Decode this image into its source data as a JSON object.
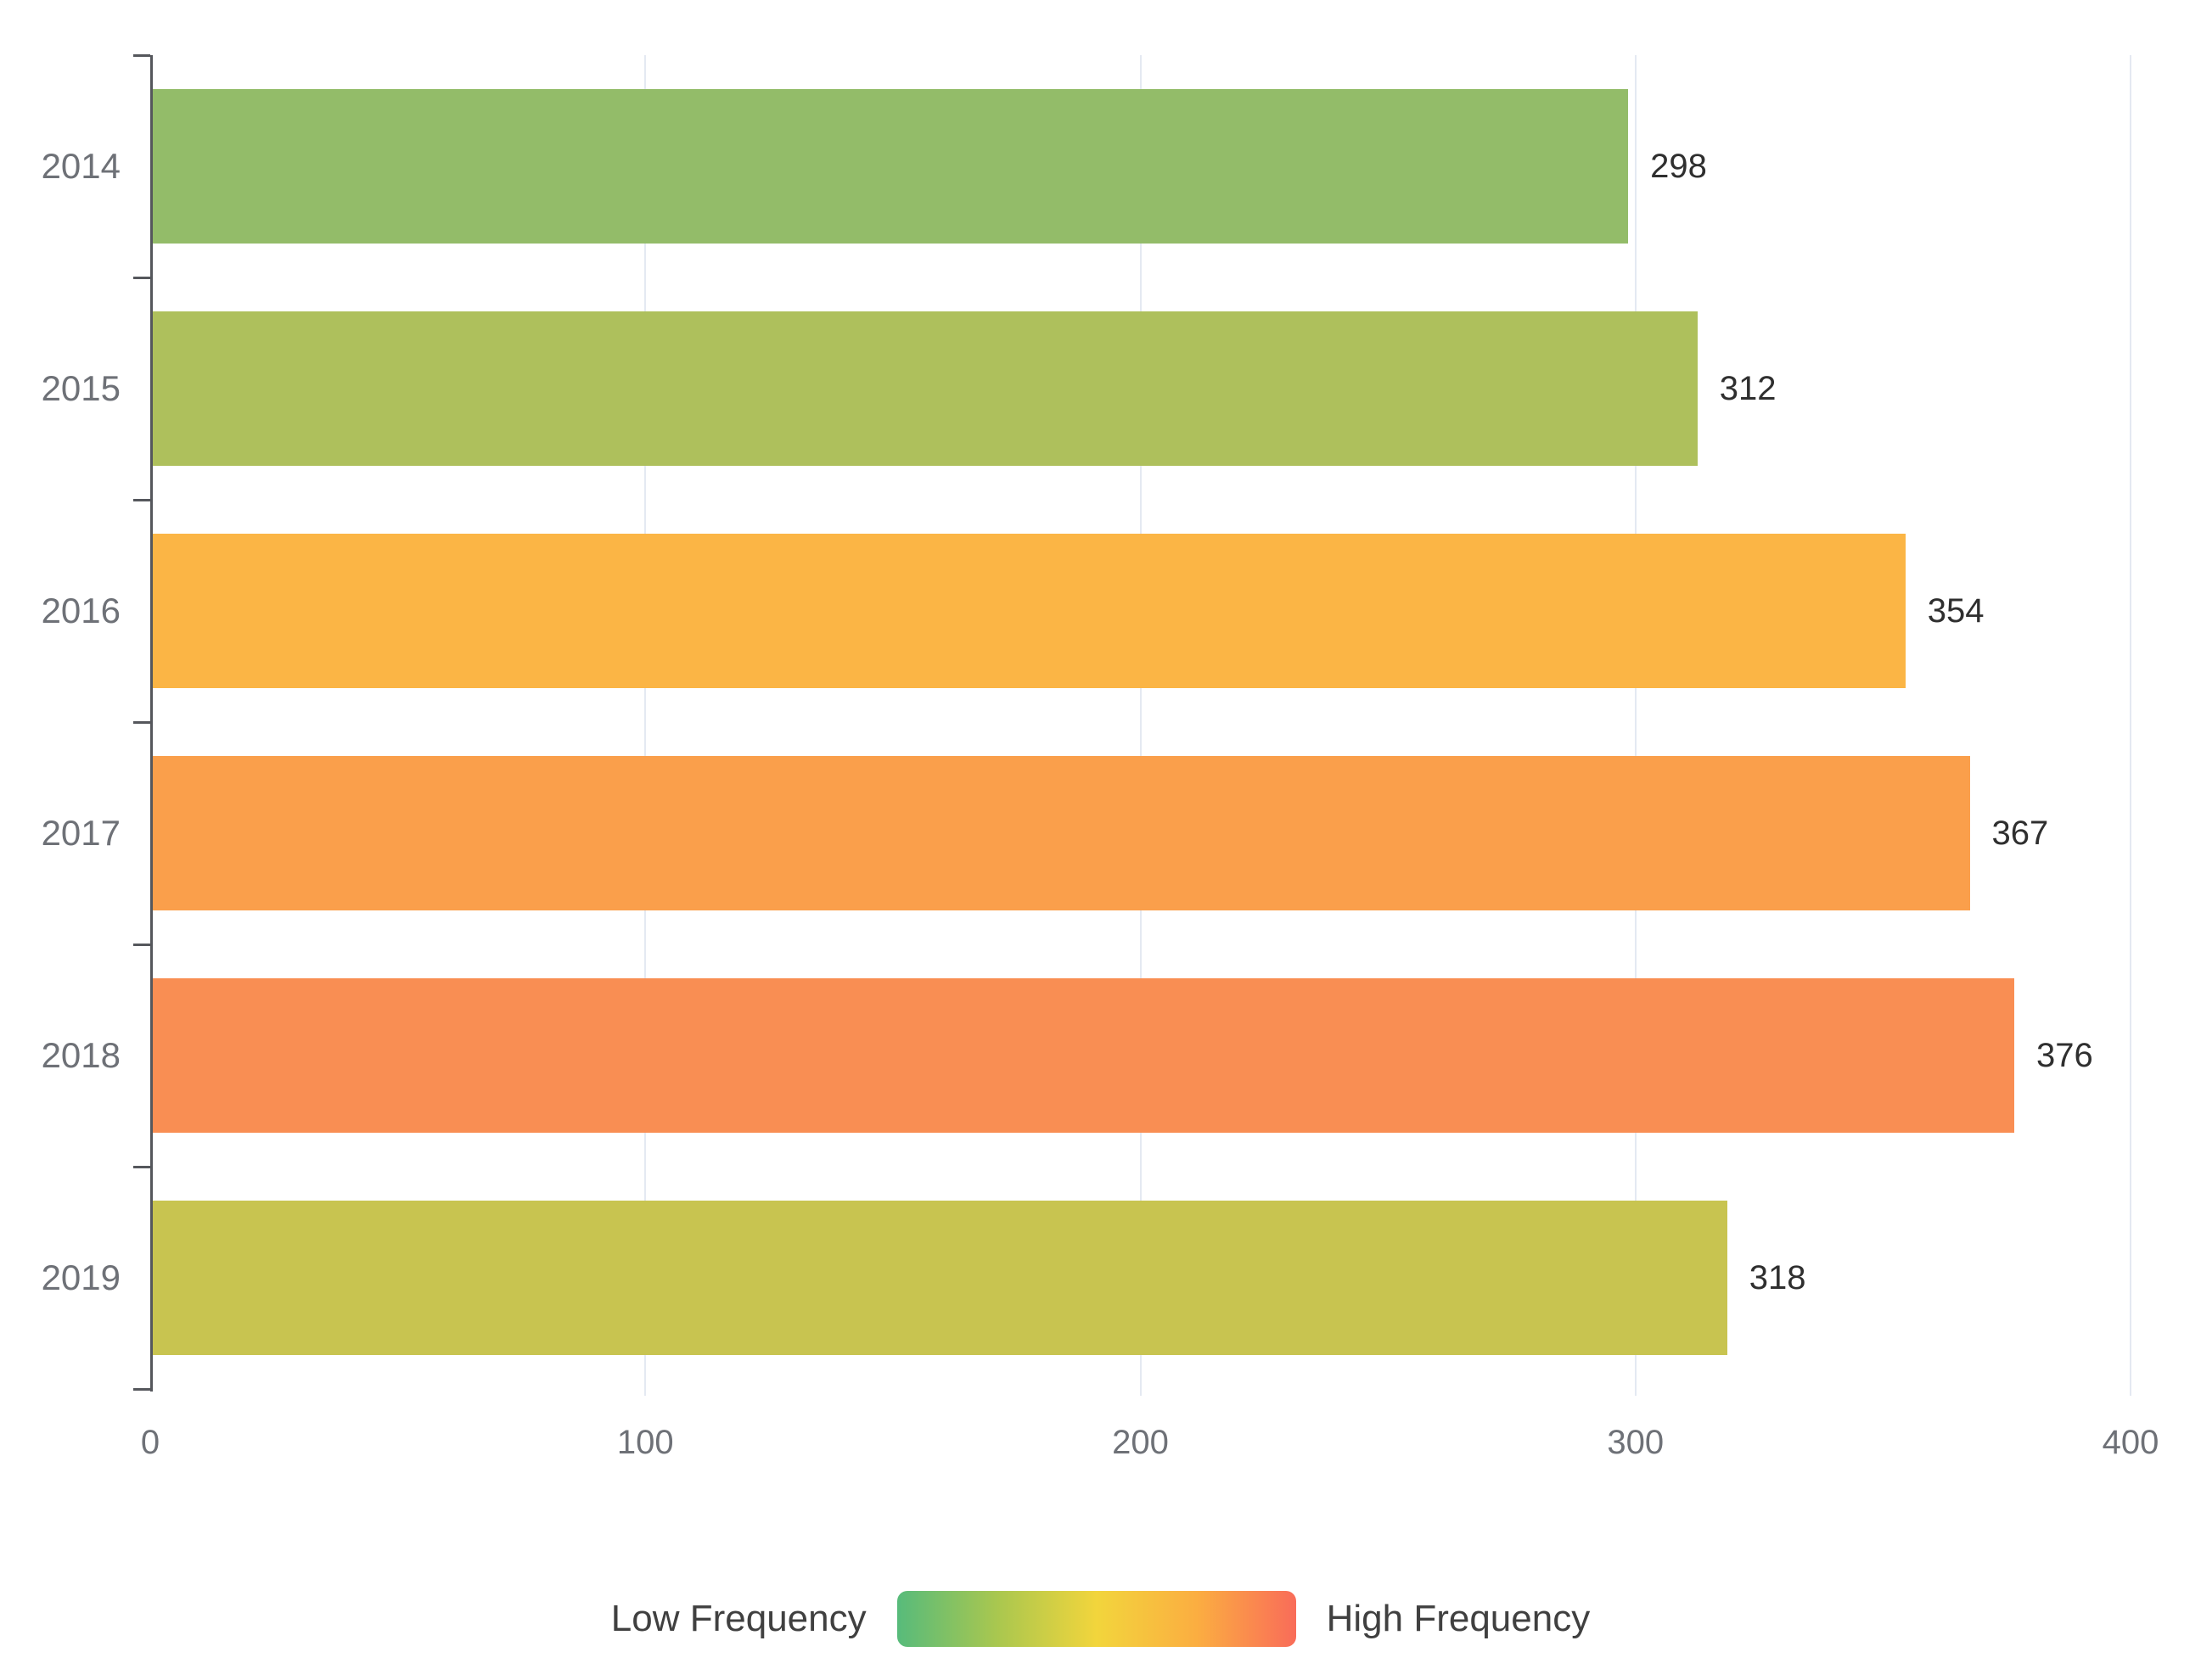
{
  "chart_data": {
    "type": "bar",
    "orientation": "horizontal",
    "title": "",
    "categories": [
      "2014",
      "2015",
      "2016",
      "2017",
      "2018",
      "2019"
    ],
    "values": [
      298,
      312,
      354,
      367,
      376,
      318
    ],
    "value_labels": [
      "298",
      "312",
      "354",
      "367",
      "376",
      "318"
    ],
    "bar_colors": [
      "#93BC69",
      "#AEC05C",
      "#FBB545",
      "#FA9F4B",
      "#F98E53",
      "#C8C450"
    ],
    "xlim": [
      0,
      400
    ],
    "x_ticks": [
      0,
      100,
      200,
      300,
      400
    ],
    "x_tick_labels": [
      "0",
      "100",
      "200",
      "300",
      "400"
    ],
    "grid": "vertical gridlines at x ticks, no horizontal gridlines",
    "legend_position": "bottom-center",
    "legend": {
      "low_label": "Low Frequency",
      "high_label": "High Frequency",
      "gradient_stops": [
        "#57BB7B",
        "#A9C74F",
        "#F2D53C",
        "#FBAE41",
        "#F96C59"
      ]
    }
  },
  "colors": {
    "background": "#FFFFFF",
    "axis": "#55575C",
    "gridline": "#E4E9F2",
    "category_label": "#6E7177",
    "x_tick_label": "#6E7177",
    "value_label": "#2F2F2F",
    "legend_label": "#404040"
  }
}
